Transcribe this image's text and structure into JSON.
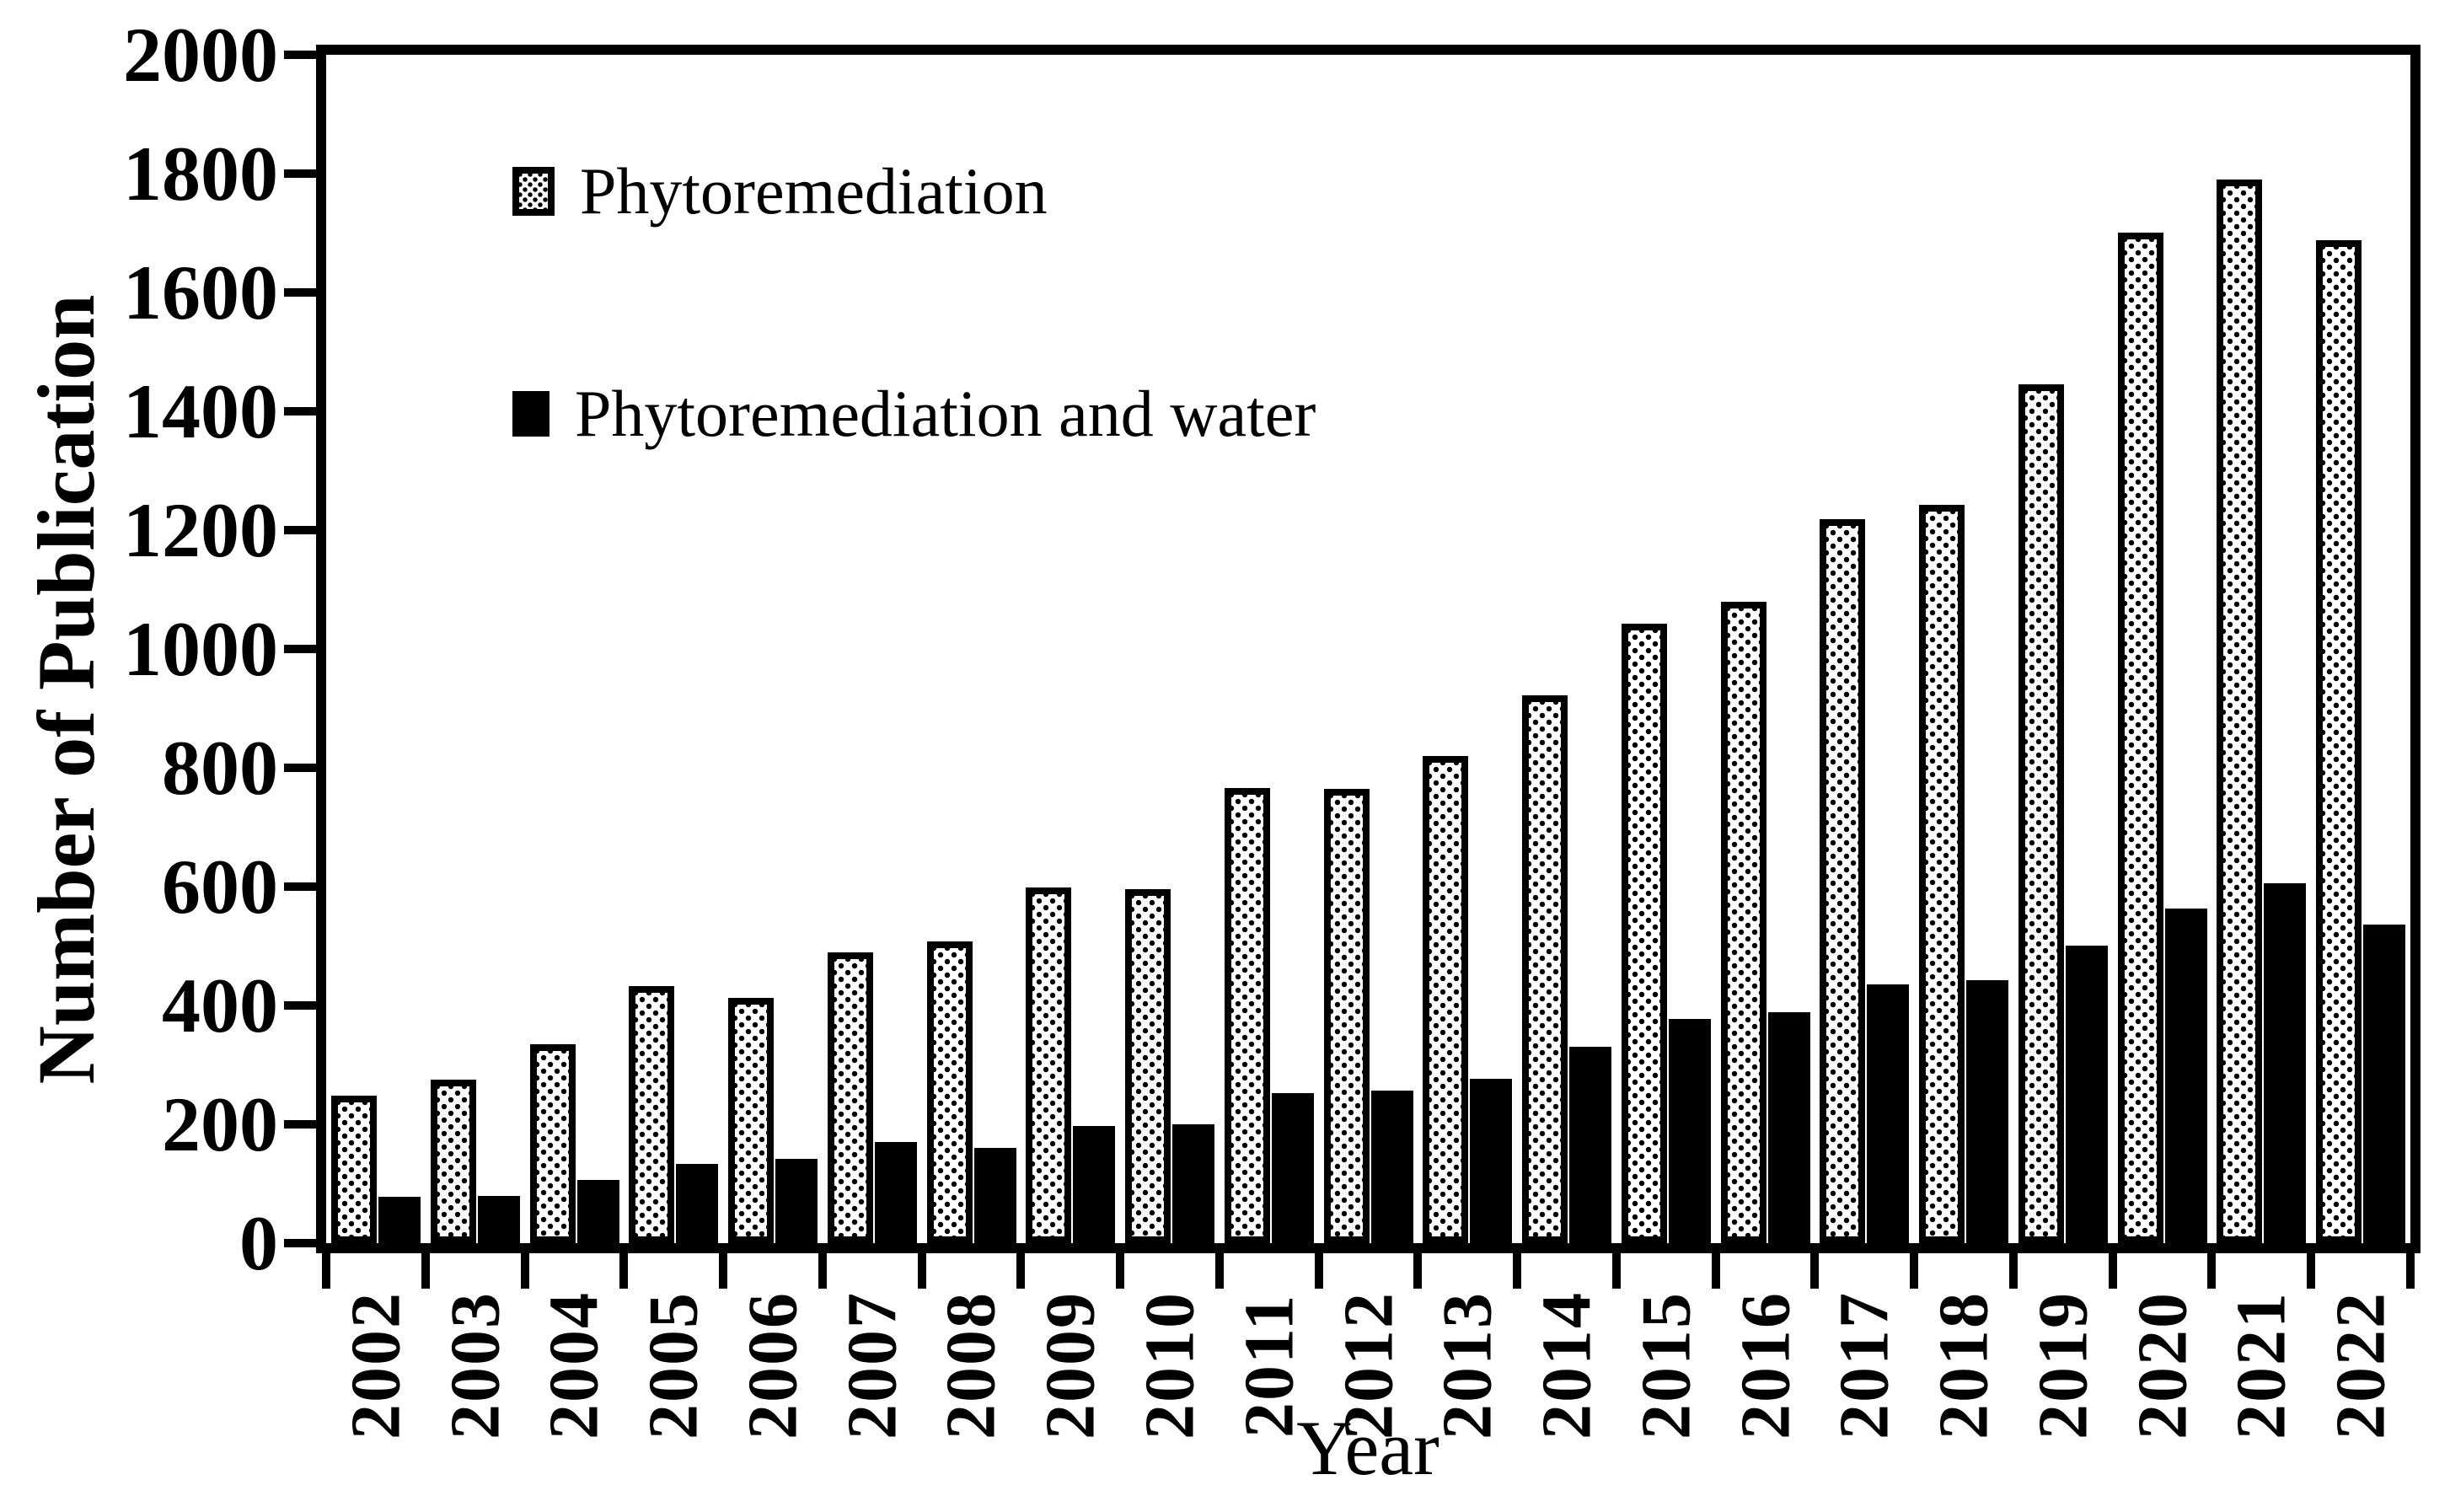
{
  "colors": {
    "foreground": "#000000",
    "background": "#ffffff"
  },
  "y_axis": {
    "title": "Number of Publication",
    "min": 0,
    "max": 2000,
    "step": 200,
    "tick_labels": [
      "0",
      "200",
      "400",
      "600",
      "800",
      "1000",
      "1200",
      "1400",
      "1600",
      "1800",
      "2000"
    ]
  },
  "x_axis": {
    "title": "Year",
    "labels": [
      "2002",
      "2003",
      "2004",
      "2005",
      "2006",
      "2007",
      "2008",
      "2009",
      "2010",
      "2011",
      "2012",
      "2013",
      "2014",
      "2015",
      "2016",
      "2017",
      "2018",
      "2019",
      "2020",
      "2021",
      "2022"
    ]
  },
  "legend": {
    "position": "inside-top-left",
    "items": [
      {
        "label": "Phytoremediation",
        "pattern": "dotted-25%"
      },
      {
        "label": "Phytoremediation and water",
        "pattern": "solid-black"
      }
    ]
  },
  "chart_data": {
    "type": "bar",
    "title": "",
    "xlabel": "Year",
    "ylabel": "Number of Publication",
    "ylim": [
      0,
      2000
    ],
    "ytick_step": 200,
    "grid": false,
    "legend_position": "inside-top-left",
    "categories": [
      "2002",
      "2003",
      "2004",
      "2005",
      "2006",
      "2007",
      "2008",
      "2009",
      "2010",
      "2011",
      "2012",
      "2013",
      "2014",
      "2015",
      "2016",
      "2017",
      "2018",
      "2019",
      "2020",
      "2021",
      "2022"
    ],
    "series": [
      {
        "name": "Phytoremediation",
        "pattern": "dotted-25%",
        "values": [
          248,
          275,
          335,
          433,
          413,
          490,
          508,
          598,
          596,
          766,
          764,
          820,
          922,
          1042,
          1080,
          1218,
          1243,
          1445,
          1700,
          1790,
          1688
        ]
      },
      {
        "name": "Phytoremediation and water",
        "pattern": "solid-black",
        "values": [
          78,
          80,
          106,
          133,
          142,
          170,
          160,
          197,
          200,
          252,
          257,
          276,
          330,
          378,
          388,
          436,
          443,
          500,
          563,
          605,
          536
        ]
      }
    ]
  }
}
